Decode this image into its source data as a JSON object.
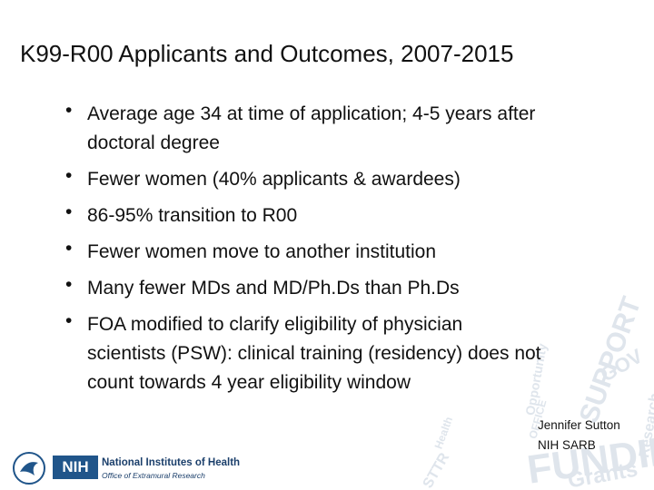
{
  "title": "K99-R00 Applicants and Outcomes, 2007-2015",
  "bullets": [
    {
      "lines": [
        "Average age 34 at time of application; 4-5 years after",
        "doctoral degree"
      ]
    },
    {
      "lines": [
        "Fewer women (40% applicants & awardees)"
      ]
    },
    {
      "lines": [
        "86-95% transition to R00"
      ]
    },
    {
      "lines": [
        "Fewer women move to another institution"
      ]
    },
    {
      "lines": [
        "Many fewer MDs and MD/Ph.Ds than Ph.Ds"
      ]
    },
    {
      "lines": [
        "FOA modified to clarify eligibility of physician",
        "scientists (PSW): clinical training (residency) does not",
        "count towards 4 year eligibility window"
      ]
    }
  ],
  "author": [
    "Jennifer Sutton",
    "NIH SARB"
  ],
  "logo": {
    "abbr": "NIH",
    "name": "National Institutes of Health",
    "office": "Office of Extramural Research"
  },
  "watermark_words": [
    "Opportunity",
    "SUPPORT",
    "GOV",
    "OFFICE",
    "FUNDING",
    "Health",
    "STTR",
    "Grants",
    "Research"
  ]
}
